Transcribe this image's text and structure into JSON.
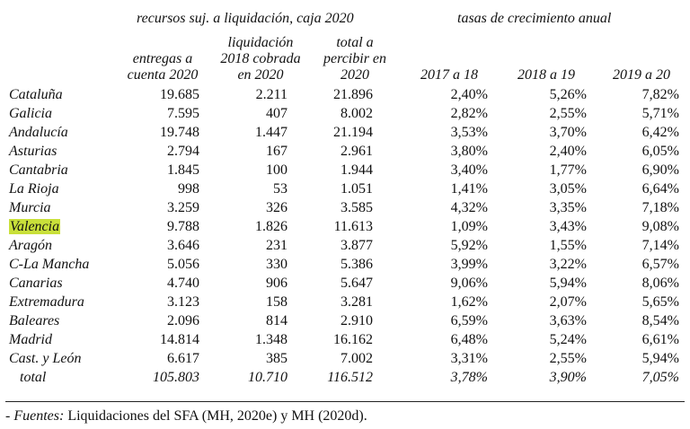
{
  "headers": {
    "group1": "recursos suj. a liquidación, caja 2020",
    "group2": "tasas de crecimiento anual",
    "col1": [
      "entregas a",
      "cuenta 2020"
    ],
    "col2": [
      "liquidación",
      "2018 cobrada",
      "en 2020"
    ],
    "col3": [
      "total a",
      "percibir en",
      "2020"
    ],
    "col4": "2017 a 18",
    "col5": "2018 a 19",
    "col6": "2019 a 20"
  },
  "rows": [
    {
      "region": "Cataluña",
      "entregas": "19.685",
      "liquidacion": "2.211",
      "total": "21.896",
      "r1718": "2,40%",
      "r1819": "5,26%",
      "r1920": "7,82%"
    },
    {
      "region": "Galicia",
      "entregas": "7.595",
      "liquidacion": "407",
      "total": "8.002",
      "r1718": "2,82%",
      "r1819": "2,55%",
      "r1920": "5,71%"
    },
    {
      "region": "Andalucía",
      "entregas": "19.748",
      "liquidacion": "1.447",
      "total": "21.194",
      "r1718": "3,53%",
      "r1819": "3,70%",
      "r1920": "6,42%"
    },
    {
      "region": "Asturias",
      "entregas": "2.794",
      "liquidacion": "167",
      "total": "2.961",
      "r1718": "3,80%",
      "r1819": "2,40%",
      "r1920": "6,05%"
    },
    {
      "region": "Cantabria",
      "entregas": "1.845",
      "liquidacion": "100",
      "total": "1.944",
      "r1718": "3,40%",
      "r1819": "1,77%",
      "r1920": "6,90%"
    },
    {
      "region": "La Rioja",
      "entregas": "998",
      "liquidacion": "53",
      "total": "1.051",
      "r1718": "1,41%",
      "r1819": "3,05%",
      "r1920": "6,64%"
    },
    {
      "region": "Murcia",
      "entregas": "3.259",
      "liquidacion": "326",
      "total": "3.585",
      "r1718": "4,32%",
      "r1819": "3,35%",
      "r1920": "7,18%"
    },
    {
      "region": "Valencia",
      "entregas": "9.788",
      "liquidacion": "1.826",
      "total": "11.613",
      "r1718": "1,09%",
      "r1819": "3,43%",
      "r1920": "9,08%",
      "highlight": true
    },
    {
      "region": "Aragón",
      "entregas": "3.646",
      "liquidacion": "231",
      "total": "3.877",
      "r1718": "5,92%",
      "r1819": "1,55%",
      "r1920": "7,14%"
    },
    {
      "region": "C-La Mancha",
      "entregas": "5.056",
      "liquidacion": "330",
      "total": "5.386",
      "r1718": "3,99%",
      "r1819": "3,22%",
      "r1920": "6,57%"
    },
    {
      "region": "Canarias",
      "entregas": "4.740",
      "liquidacion": "906",
      "total": "5.647",
      "r1718": "9,06%",
      "r1819": "5,94%",
      "r1920": "8,06%"
    },
    {
      "region": "Extremadura",
      "entregas": "3.123",
      "liquidacion": "158",
      "total": "3.281",
      "r1718": "1,62%",
      "r1819": "2,07%",
      "r1920": "5,65%"
    },
    {
      "region": "Baleares",
      "entregas": "2.096",
      "liquidacion": "814",
      "total": "2.910",
      "r1718": "6,59%",
      "r1819": "3,63%",
      "r1920": "8,54%"
    },
    {
      "region": "Madrid",
      "entregas": "14.814",
      "liquidacion": "1.348",
      "total": "16.162",
      "r1718": "6,48%",
      "r1819": "5,24%",
      "r1920": "6,61%"
    },
    {
      "region": "Cast. y León",
      "entregas": "6.617",
      "liquidacion": "385",
      "total": "7.002",
      "r1718": "3,31%",
      "r1819": "2,55%",
      "r1920": "5,94%"
    },
    {
      "region": "total",
      "entregas": "105.803",
      "liquidacion": "10.710",
      "total": "116.512",
      "r1718": "3,78%",
      "r1819": "3,90%",
      "r1920": "7,05%",
      "is_total": true
    }
  ],
  "footer": {
    "prefix": "- ",
    "label": "Fuentes:",
    "text": " Liquidaciones del SFA (MH, 2020e) y MH (2020d)."
  },
  "highlight_color": "#c9e03a"
}
